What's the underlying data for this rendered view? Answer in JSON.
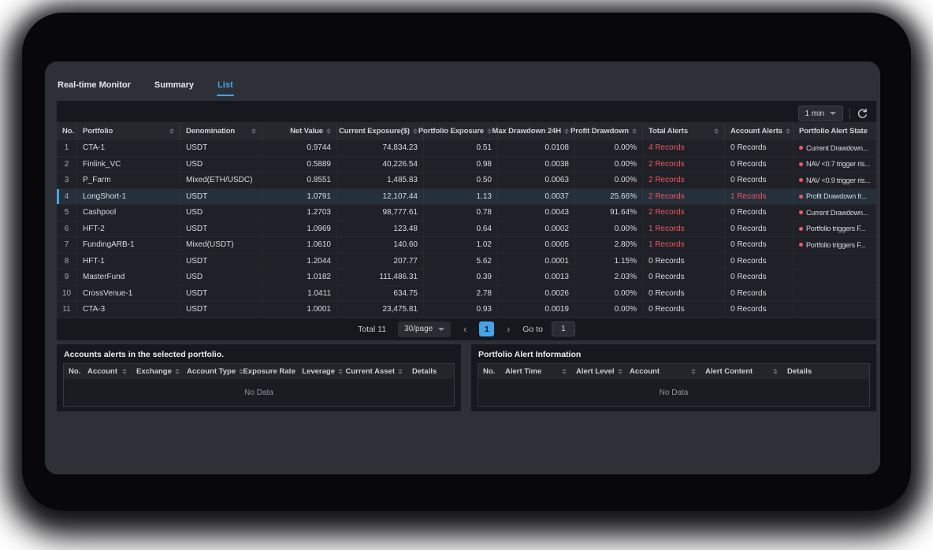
{
  "colors": {
    "accent": "#46a3e9",
    "alert_red": "#ef5862"
  },
  "icons": {
    "refresh": "circular-arrow",
    "chevron_down": "caret-down",
    "sort": "caret-up-down",
    "alert_state_dot": "red-dot"
  },
  "tabs": [
    {
      "label": "Real-time Monitor",
      "active": false
    },
    {
      "label": "Summary",
      "active": false
    },
    {
      "label": "List",
      "active": true
    }
  ],
  "toolbar": {
    "interval": "1 min"
  },
  "main_table": {
    "columns": [
      {
        "label": "No.",
        "key": "no",
        "sortable": false
      },
      {
        "label": "Portfolio",
        "key": "portfolio",
        "sortable": true
      },
      {
        "label": "Denomination",
        "key": "denomination",
        "sortable": true
      },
      {
        "label": "Net Value",
        "key": "net_value",
        "sortable": true
      },
      {
        "label": "Current Exposure($)",
        "key": "current_exposure",
        "sortable": true
      },
      {
        "label": "Portfolio Exposure",
        "key": "portfolio_exposure",
        "sortable": true
      },
      {
        "label": "Max Drawdown 24H",
        "key": "max_drawdown_24h",
        "sortable": true
      },
      {
        "label": "Profit Drawdown",
        "key": "profit_drawdown",
        "sortable": true
      },
      {
        "label": "Total Alerts",
        "key": "total_alerts",
        "sortable": true
      },
      {
        "label": "Account Alerts",
        "key": "account_alerts",
        "sortable": true
      },
      {
        "label": "Portfolio Alert State",
        "key": "alert_state",
        "sortable": false
      }
    ],
    "rows": [
      {
        "no": "1",
        "portfolio": "CTA-1",
        "denomination": "USDT",
        "net_value": "0.9744",
        "current_exposure": "74,834.23",
        "portfolio_exposure": "0.51",
        "max_drawdown_24h": "0.0108",
        "profit_drawdown": "0.00%",
        "total_alerts": "4 Records",
        "account_alerts": "0 Records",
        "alert_state": "Current Drawdown...",
        "selected": false
      },
      {
        "no": "2",
        "portfolio": "Finlink_VC",
        "denomination": "USD",
        "net_value": "0.5889",
        "current_exposure": "40,226.54",
        "portfolio_exposure": "0.98",
        "max_drawdown_24h": "0.0038",
        "profit_drawdown": "0.00%",
        "total_alerts": "2 Records",
        "account_alerts": "0 Records",
        "alert_state": "NAV <0.7 trigger ris...",
        "selected": false
      },
      {
        "no": "3",
        "portfolio": "P_Farm",
        "denomination": "Mixed(ETH/USDC)",
        "net_value": "0.8551",
        "current_exposure": "1,485.83",
        "portfolio_exposure": "0.50",
        "max_drawdown_24h": "0.0063",
        "profit_drawdown": "0.00%",
        "total_alerts": "2 Records",
        "account_alerts": "0 Records",
        "alert_state": "NAV <0.9 trigger ris...",
        "selected": false
      },
      {
        "no": "4",
        "portfolio": "LongShort-1",
        "denomination": "USDT",
        "net_value": "1.0791",
        "current_exposure": "12,107.44",
        "portfolio_exposure": "1.13",
        "max_drawdown_24h": "0.0037",
        "profit_drawdown": "25.66%",
        "total_alerts": "2 Records",
        "account_alerts": "1 Records",
        "alert_state": "Profit Drawdown fr...",
        "selected": true
      },
      {
        "no": "5",
        "portfolio": "Cashpool",
        "denomination": "USD",
        "net_value": "1.2703",
        "current_exposure": "98,777.61",
        "portfolio_exposure": "0.78",
        "max_drawdown_24h": "0.0043",
        "profit_drawdown": "91.64%",
        "total_alerts": "2 Records",
        "account_alerts": "0 Records",
        "alert_state": "Current Drawdown...",
        "selected": false
      },
      {
        "no": "6",
        "portfolio": "HFT-2",
        "denomination": "USDT",
        "net_value": "1.0969",
        "current_exposure": "123.48",
        "portfolio_exposure": "0.64",
        "max_drawdown_24h": "0.0002",
        "profit_drawdown": "0.00%",
        "total_alerts": "1 Records",
        "account_alerts": "0 Records",
        "alert_state": "Portfolio triggers F...",
        "selected": false
      },
      {
        "no": "7",
        "portfolio": "FundingARB-1",
        "denomination": "Mixed(USDT)",
        "net_value": "1.0610",
        "current_exposure": "140.60",
        "portfolio_exposure": "1.02",
        "max_drawdown_24h": "0.0005",
        "profit_drawdown": "2.80%",
        "total_alerts": "1 Records",
        "account_alerts": "0 Records",
        "alert_state": "Portfolio triggers F...",
        "selected": false
      },
      {
        "no": "8",
        "portfolio": "HFT-1",
        "denomination": "USDT",
        "net_value": "1.2044",
        "current_exposure": "207.77",
        "portfolio_exposure": "5.62",
        "max_drawdown_24h": "0.0001",
        "profit_drawdown": "1.15%",
        "total_alerts": "0 Records",
        "account_alerts": "0 Records",
        "alert_state": "",
        "selected": false
      },
      {
        "no": "9",
        "portfolio": "MasterFund",
        "denomination": "USD",
        "net_value": "1.0182",
        "current_exposure": "111,486.31",
        "portfolio_exposure": "0.39",
        "max_drawdown_24h": "0.0013",
        "profit_drawdown": "2.03%",
        "total_alerts": "0 Records",
        "account_alerts": "0 Records",
        "alert_state": "",
        "selected": false
      },
      {
        "no": "10",
        "portfolio": "CrossVenue-1",
        "denomination": "USDT",
        "net_value": "1.0411",
        "current_exposure": "634.75",
        "portfolio_exposure": "2.78",
        "max_drawdown_24h": "0.0026",
        "profit_drawdown": "0.00%",
        "total_alerts": "0 Records",
        "account_alerts": "0 Records",
        "alert_state": "",
        "selected": false
      },
      {
        "no": "11",
        "portfolio": "CTA-3",
        "denomination": "USDT",
        "net_value": "1.0001",
        "current_exposure": "23,475.81",
        "portfolio_exposure": "0.93",
        "max_drawdown_24h": "0.0019",
        "profit_drawdown": "0.00%",
        "total_alerts": "0 Records",
        "account_alerts": "0 Records",
        "alert_state": "",
        "selected": false
      }
    ]
  },
  "pagination": {
    "total_label": "Total 11",
    "page_size": "30/page",
    "current_page": "1",
    "prev": "‹",
    "next": "›",
    "goto_label": "Go to",
    "goto_value": "1"
  },
  "accounts_panel": {
    "title": "Accounts alerts in the selected portfolio.",
    "columns": [
      {
        "label": "No.",
        "key": "no",
        "sortable": false
      },
      {
        "label": "Account",
        "key": "account",
        "sortable": true
      },
      {
        "label": "Exchange",
        "key": "exchange",
        "sortable": true
      },
      {
        "label": "Account Type",
        "key": "account_type",
        "sortable": true
      },
      {
        "label": "Exposure Rate",
        "key": "exposure_rate",
        "sortable": false
      },
      {
        "label": "Leverage",
        "key": "leverage",
        "sortable": true
      },
      {
        "label": "Current Asset",
        "key": "current_asset",
        "sortable": true
      },
      {
        "label": "Details",
        "key": "details",
        "sortable": false
      }
    ],
    "empty": "No Data"
  },
  "portfolio_alert_panel": {
    "title": "Portfolio Alert Information",
    "columns": [
      {
        "label": "No.",
        "key": "no",
        "sortable": false
      },
      {
        "label": "Alert Time",
        "key": "alert_time",
        "sortable": true
      },
      {
        "label": "Alert Level",
        "key": "alert_level",
        "sortable": true
      },
      {
        "label": "Account",
        "key": "account",
        "sortable": true
      },
      {
        "label": "Alert Content",
        "key": "alert_content",
        "sortable": true
      },
      {
        "label": "Details",
        "key": "details",
        "sortable": false
      }
    ],
    "empty": "No Data"
  }
}
